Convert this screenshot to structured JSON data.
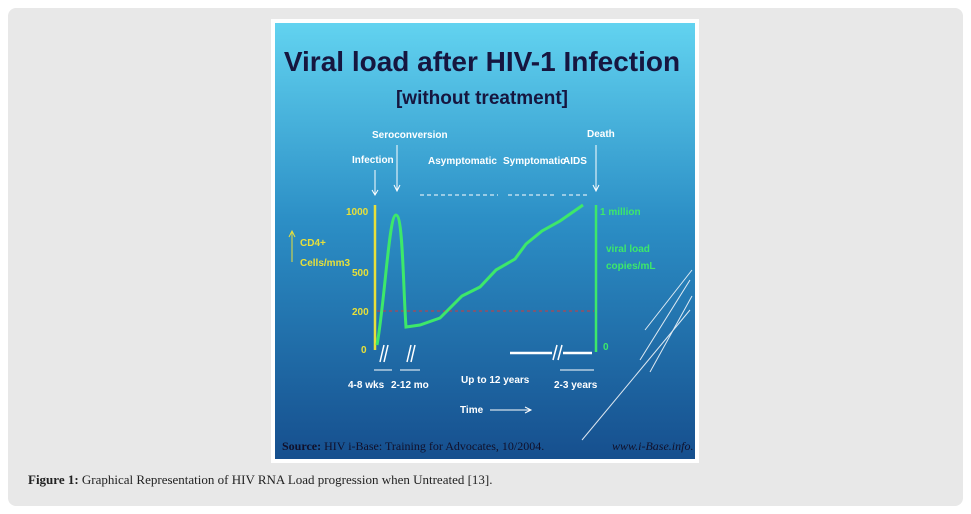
{
  "figure": {
    "slide": {
      "title": "Viral load after HIV-1 Infection",
      "subtitle": "[without treatment]",
      "events": {
        "seroconversion": "Seroconversion",
        "death": "Death",
        "infection": "Infection",
        "asymptomatic": "Asymptomatic",
        "symptomatic": "Symptomatic",
        "aids": "AIDS"
      },
      "left_axis": {
        "label_line1": "CD4+",
        "label_line2": "Cells/mm3",
        "ticks": [
          "1000",
          "500",
          "200",
          "0"
        ]
      },
      "right_axis": {
        "top": "1 million",
        "label_line1": "viral load",
        "label_line2": "copies/mL",
        "bottom": "0"
      },
      "periods": [
        "4-8 wks",
        "2-12 mo",
        "Up to 12 years",
        "2-3 years"
      ],
      "time_label": "Time",
      "source_bold": "Source:",
      "source_text": "HIV i-Base: Training for Advocates, 10/2004.",
      "website": "www.i-Base.info."
    },
    "caption_label": "Figure 1:",
    "caption_text": "Graphical Representation of HIV RNA Load progression when Untreated [13]."
  }
}
